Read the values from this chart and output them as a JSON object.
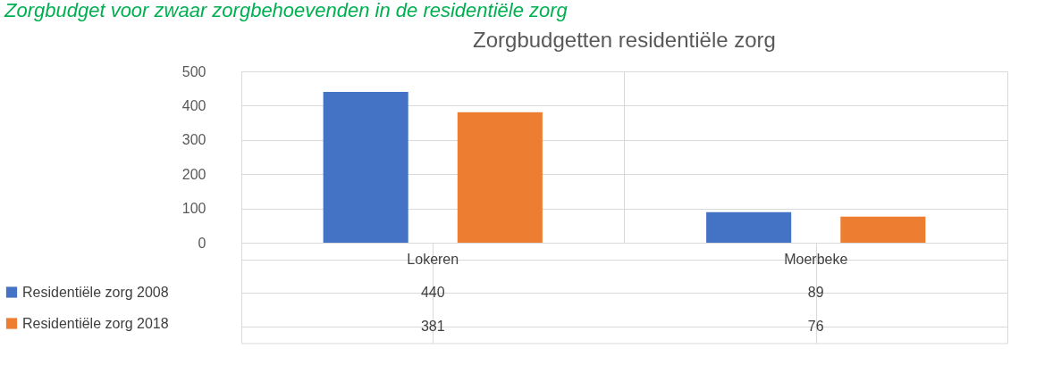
{
  "chart_data": {
    "type": "bar",
    "title": "Zorgbudgetten residentiële zorg",
    "annotations": [
      "Zorgbudget voor zwaar zorgbehoevenden in de residentiële zorg"
    ],
    "categories": [
      "Lokeren",
      "Moerbeke"
    ],
    "series": [
      {
        "name": "Residentiële zorg  2008",
        "color": "#4472c4",
        "values": [
          440,
          89
        ]
      },
      {
        "name": "Residentiële zorg  2018",
        "color": "#ed7d31",
        "values": [
          381,
          76
        ]
      }
    ],
    "ylim": [
      0,
      500
    ],
    "yticks": [
      0,
      100,
      200,
      300,
      400,
      500
    ],
    "grid": "y",
    "legend": "bottom",
    "data_labels": true
  }
}
